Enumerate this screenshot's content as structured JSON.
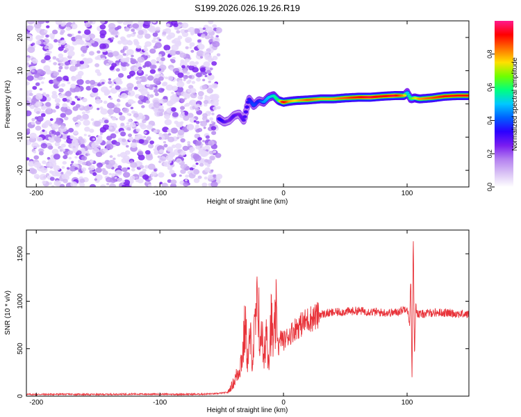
{
  "title": "S199.2026.026.19.26.R19",
  "chart_data": [
    {
      "type": "heatmap",
      "title": "S199.2026.026.19.26.R19",
      "xlabel": "Height of straight line (km)",
      "ylabel": "Frequency (Hz)",
      "xlim": [
        -208,
        150
      ],
      "ylim": [
        -25,
        25
      ],
      "xticks": [
        -200,
        -100,
        0,
        100
      ],
      "yticks": [
        -20,
        -10,
        0,
        10,
        20
      ],
      "colorbar": {
        "label": "Normalized spectral amplitude",
        "range": [
          0,
          1
        ],
        "ticks": [
          "0.0",
          "0.2",
          "0.4",
          "0.6",
          "0.8"
        ],
        "colormap": [
          "#ffffff",
          "#d9c2f5",
          "#b480f0",
          "#7a1df0",
          "#2b00ff",
          "#0060ff",
          "#00c8ff",
          "#00ff80",
          "#6fff00",
          "#ffe000",
          "#ff7000",
          "#ff0000",
          "#ff1a8c"
        ]
      },
      "noise_region": {
        "x_from": -208,
        "x_to": -52,
        "note": "scattered purple low-amplitude noise"
      },
      "signal_track": {
        "x": [
          -52,
          -48,
          -44,
          -40,
          -36,
          -32,
          -28,
          -24,
          -20,
          -16,
          -12,
          -8,
          -4,
          0,
          5,
          10,
          20,
          30,
          40,
          50,
          60,
          70,
          80,
          90,
          98,
          100,
          103,
          106,
          110,
          120,
          130,
          140,
          150
        ],
        "freq": [
          -4.5,
          -5.5,
          -5.0,
          -3.5,
          -3.0,
          -5.0,
          1.5,
          -0.5,
          1.0,
          0.5,
          2.0,
          2.5,
          1.0,
          0.5,
          0.8,
          1.0,
          1.2,
          1.5,
          1.5,
          1.8,
          2.0,
          2.0,
          2.3,
          2.5,
          2.5,
          3.5,
          1.5,
          1.8,
          1.5,
          1.8,
          2.3,
          2.5,
          2.5
        ],
        "amplitude": [
          0.35,
          0.3,
          0.25,
          0.3,
          0.25,
          0.3,
          0.35,
          0.4,
          0.35,
          0.45,
          0.5,
          0.55,
          0.6,
          0.95,
          0.8,
          0.75,
          0.85,
          0.8,
          0.8,
          0.85,
          0.9,
          0.95,
          0.9,
          0.95,
          0.8,
          0.5,
          0.6,
          0.7,
          0.8,
          0.85,
          0.9,
          0.9,
          0.9
        ]
      }
    },
    {
      "type": "line",
      "xlabel": "Height of straight line (km)",
      "ylabel": "SNR (10 * v/v)",
      "xlim": [
        -208,
        150
      ],
      "ylim": [
        0,
        1750
      ],
      "xticks": [
        -200,
        -100,
        0,
        100
      ],
      "yticks": [
        0,
        500,
        1000,
        1500
      ],
      "line_color": "#e8333a",
      "series": [
        {
          "name": "SNR",
          "x": [
            -208,
            -180,
            -150,
            -120,
            -90,
            -70,
            -55,
            -45,
            -40,
            -36,
            -33,
            -31,
            -29,
            -27,
            -25,
            -23,
            -21,
            -20,
            -19,
            -18,
            -16,
            -14,
            -12,
            -10,
            -8,
            -6,
            -4,
            -2,
            0,
            5,
            10,
            15,
            20,
            25,
            30,
            40,
            50,
            60,
            70,
            80,
            90,
            95,
            100,
            102,
            103,
            104,
            105,
            106,
            107,
            108,
            110,
            120,
            130,
            140,
            150
          ],
          "y": [
            18,
            20,
            18,
            22,
            20,
            20,
            25,
            40,
            150,
            280,
            440,
            760,
            380,
            600,
            420,
            720,
            950,
            1000,
            350,
            860,
            300,
            750,
            420,
            800,
            520,
            860,
            500,
            620,
            580,
            650,
            720,
            760,
            810,
            830,
            860,
            880,
            890,
            900,
            890,
            880,
            880,
            900,
            940,
            760,
            1240,
            140,
            1720,
            420,
            960,
            880,
            860,
            880,
            880,
            870,
            860
          ]
        }
      ]
    }
  ]
}
